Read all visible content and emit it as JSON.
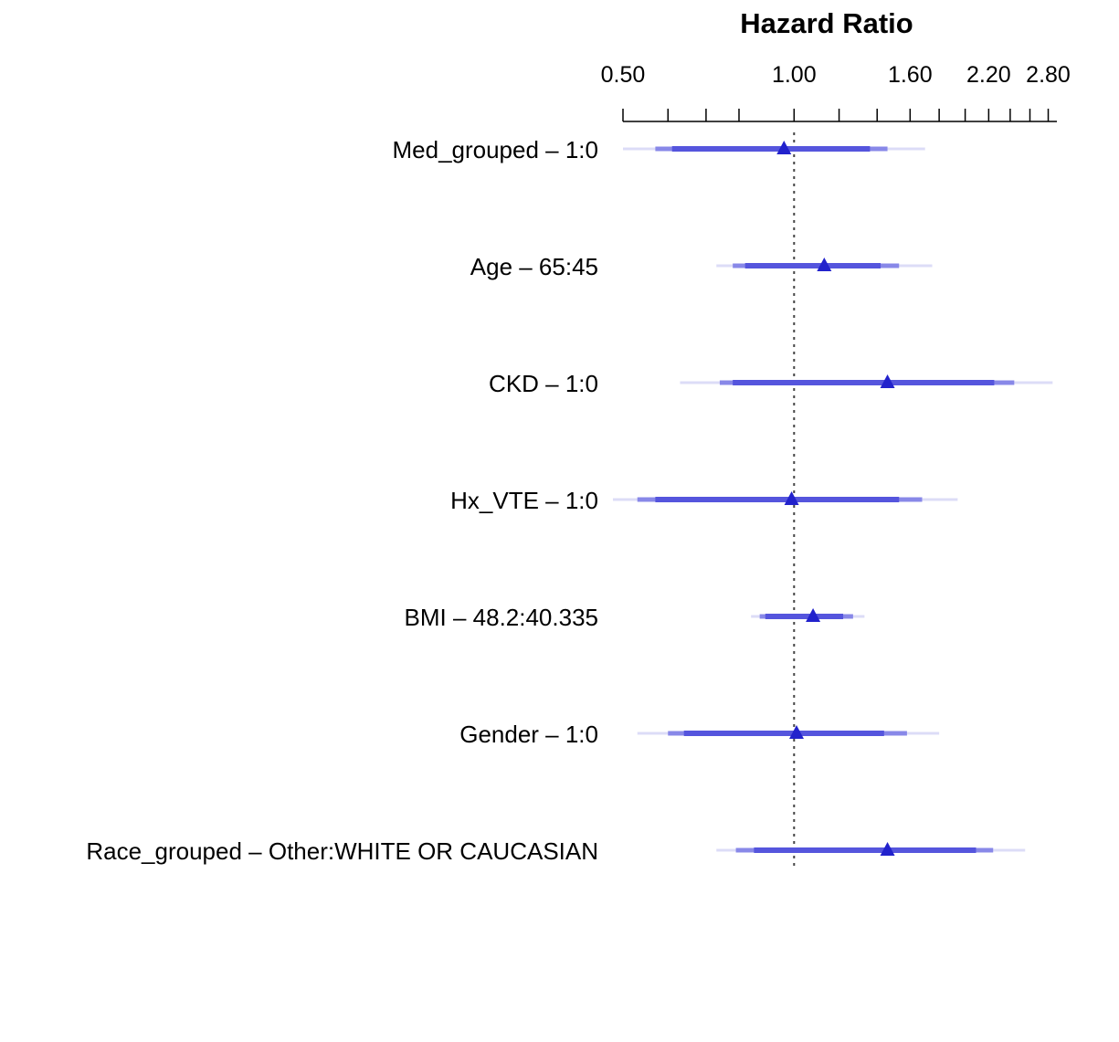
{
  "chart_data": {
    "type": "forest",
    "title": "Hazard Ratio",
    "x_scale": "log",
    "xlim": [
      0.5,
      2.9
    ],
    "ticks": [
      {
        "value": 0.5,
        "label": "0.50"
      },
      {
        "value": 0.6,
        "label": ""
      },
      {
        "value": 0.7,
        "label": ""
      },
      {
        "value": 0.8,
        "label": ""
      },
      {
        "value": 1.0,
        "label": "1.00"
      },
      {
        "value": 1.2,
        "label": ""
      },
      {
        "value": 1.4,
        "label": ""
      },
      {
        "value": 1.6,
        "label": "1.60"
      },
      {
        "value": 1.8,
        "label": ""
      },
      {
        "value": 2.0,
        "label": ""
      },
      {
        "value": 2.2,
        "label": "2.20"
      },
      {
        "value": 2.4,
        "label": ""
      },
      {
        "value": 2.6,
        "label": ""
      },
      {
        "value": 2.8,
        "label": "2.80"
      }
    ],
    "reference_line": 1.0,
    "interval_levels": [
      "inner",
      "middle",
      "outer"
    ],
    "rows": [
      {
        "label": "Med_grouped – 1:0",
        "hr": 0.96,
        "inner": [
          0.61,
          1.36
        ],
        "middle": [
          0.57,
          1.46
        ],
        "outer": [
          0.5,
          1.7
        ]
      },
      {
        "label": "Age – 65:45",
        "hr": 1.13,
        "inner": [
          0.82,
          1.42
        ],
        "middle": [
          0.78,
          1.53
        ],
        "outer": [
          0.73,
          1.75
        ]
      },
      {
        "label": "CKD – 1:0",
        "hr": 1.46,
        "inner": [
          0.78,
          2.25
        ],
        "middle": [
          0.74,
          2.44
        ],
        "outer": [
          0.63,
          2.85
        ]
      },
      {
        "label": "Hx_VTE – 1:0",
        "hr": 0.99,
        "inner": [
          0.57,
          1.53
        ],
        "middle": [
          0.53,
          1.68
        ],
        "outer": [
          0.48,
          1.94
        ]
      },
      {
        "label": "BMI – 48.2:40.335",
        "hr": 1.08,
        "inner": [
          0.89,
          1.22
        ],
        "middle": [
          0.87,
          1.27
        ],
        "outer": [
          0.84,
          1.33
        ]
      },
      {
        "label": "Gender – 1:0",
        "hr": 1.01,
        "inner": [
          0.64,
          1.44
        ],
        "middle": [
          0.6,
          1.58
        ],
        "outer": [
          0.53,
          1.8
        ]
      },
      {
        "label": "Race_grouped – Other:WHITE OR CAUCASIAN",
        "hr": 1.46,
        "inner": [
          0.85,
          2.09
        ],
        "middle": [
          0.79,
          2.24
        ],
        "outer": [
          0.73,
          2.55
        ]
      }
    ],
    "colors": {
      "marker": "#2222cc",
      "inner": "#5555dd",
      "middle": "#8888e8",
      "outer": "#dcdcf7",
      "axis": "#000000",
      "reference": "#444444"
    }
  }
}
